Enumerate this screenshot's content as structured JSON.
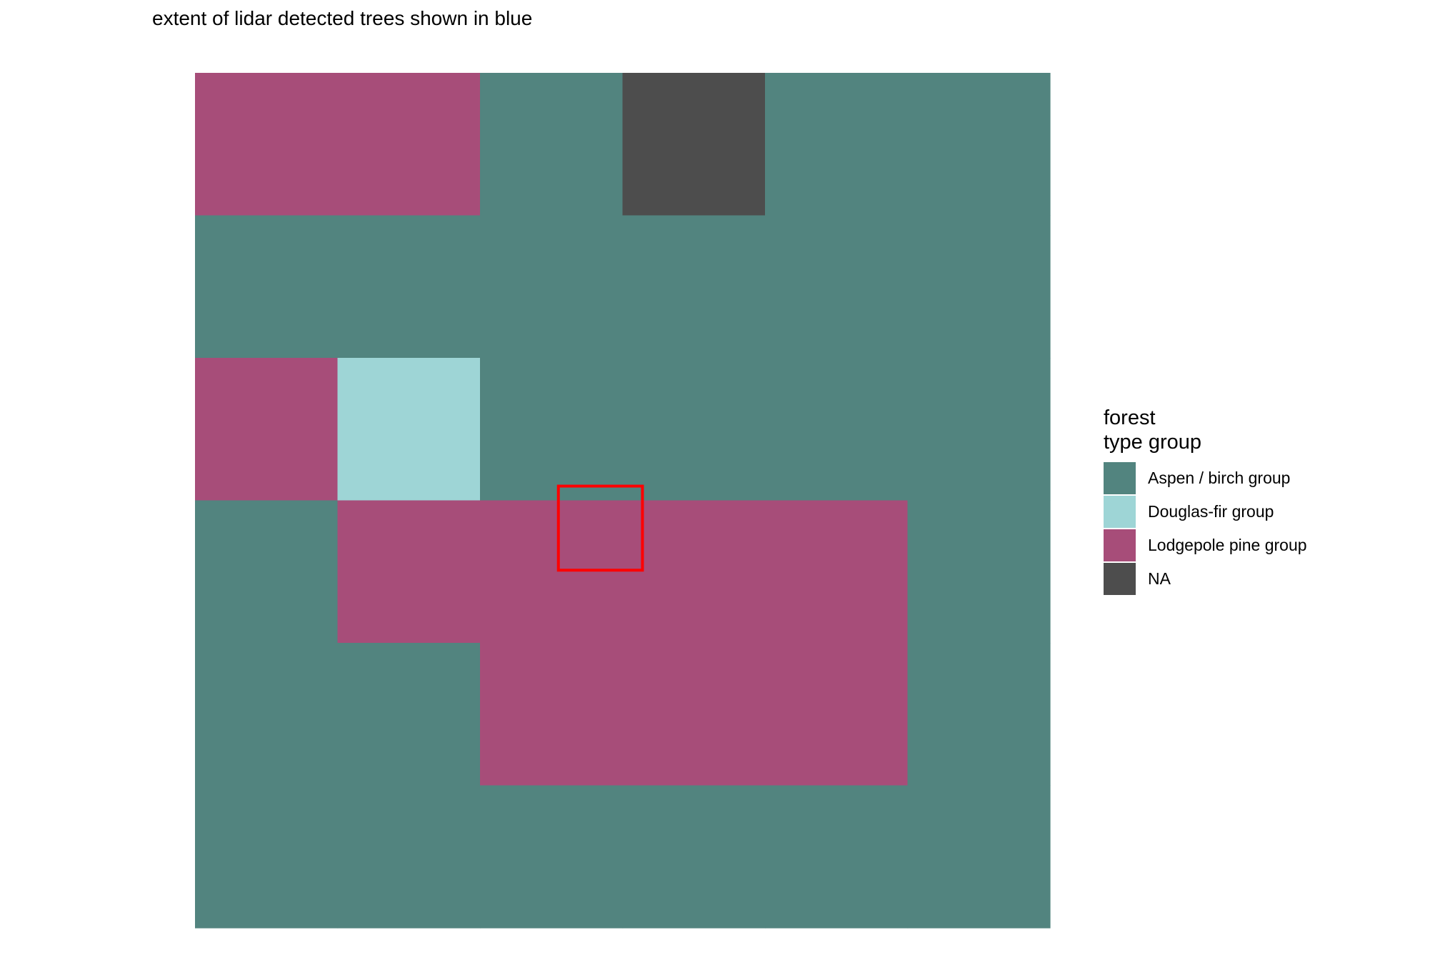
{
  "title": "extent of lidar detected trees shown in blue",
  "chart_data": {
    "type": "heatmap",
    "title": "extent of lidar detected trees shown in blue",
    "xlabel": "",
    "ylabel": "",
    "grid": false,
    "legend_position": "right",
    "legend": {
      "title": "forest\ntype group",
      "entries": [
        {
          "label": "Aspen / birch group",
          "color": "#52847F"
        },
        {
          "label": "Douglas-fir group",
          "color": "#9ED5D6"
        },
        {
          "label": "Lodgepole pine group",
          "color": "#A74D79"
        },
        {
          "label": "NA",
          "color": "#4D4D4D"
        }
      ]
    },
    "grid_size": {
      "cols": 6,
      "rows": 6
    },
    "cells": [
      [
        "Lodgepole pine group",
        "Lodgepole pine group",
        "Aspen / birch group",
        "NA",
        "Aspen / birch group",
        "Aspen / birch group"
      ],
      [
        "Aspen / birch group",
        "Aspen / birch group",
        "Aspen / birch group",
        "Aspen / birch group",
        "Aspen / birch group",
        "Aspen / birch group"
      ],
      [
        "Lodgepole pine group",
        "Douglas-fir group",
        "Aspen / birch group",
        "Aspen / birch group",
        "Aspen / birch group",
        "Aspen / birch group"
      ],
      [
        "Aspen / birch group",
        "Lodgepole pine group",
        "Lodgepole pine group",
        "Lodgepole pine group",
        "Lodgepole pine group",
        "Aspen / birch group"
      ],
      [
        "Aspen / birch group",
        "Aspen / birch group",
        "Lodgepole pine group",
        "Lodgepole pine group",
        "Lodgepole pine group",
        "Aspen / birch group"
      ],
      [
        "Aspen / birch group",
        "Aspen / birch group",
        "Aspen / birch group",
        "Aspen / birch group",
        "Aspen / birch group",
        "Aspen / birch group"
      ]
    ],
    "lidar_extent": {
      "color": "#FF0000",
      "col_range": [
        2.55,
        3.14
      ],
      "row_range": [
        2.9,
        3.49
      ]
    }
  }
}
